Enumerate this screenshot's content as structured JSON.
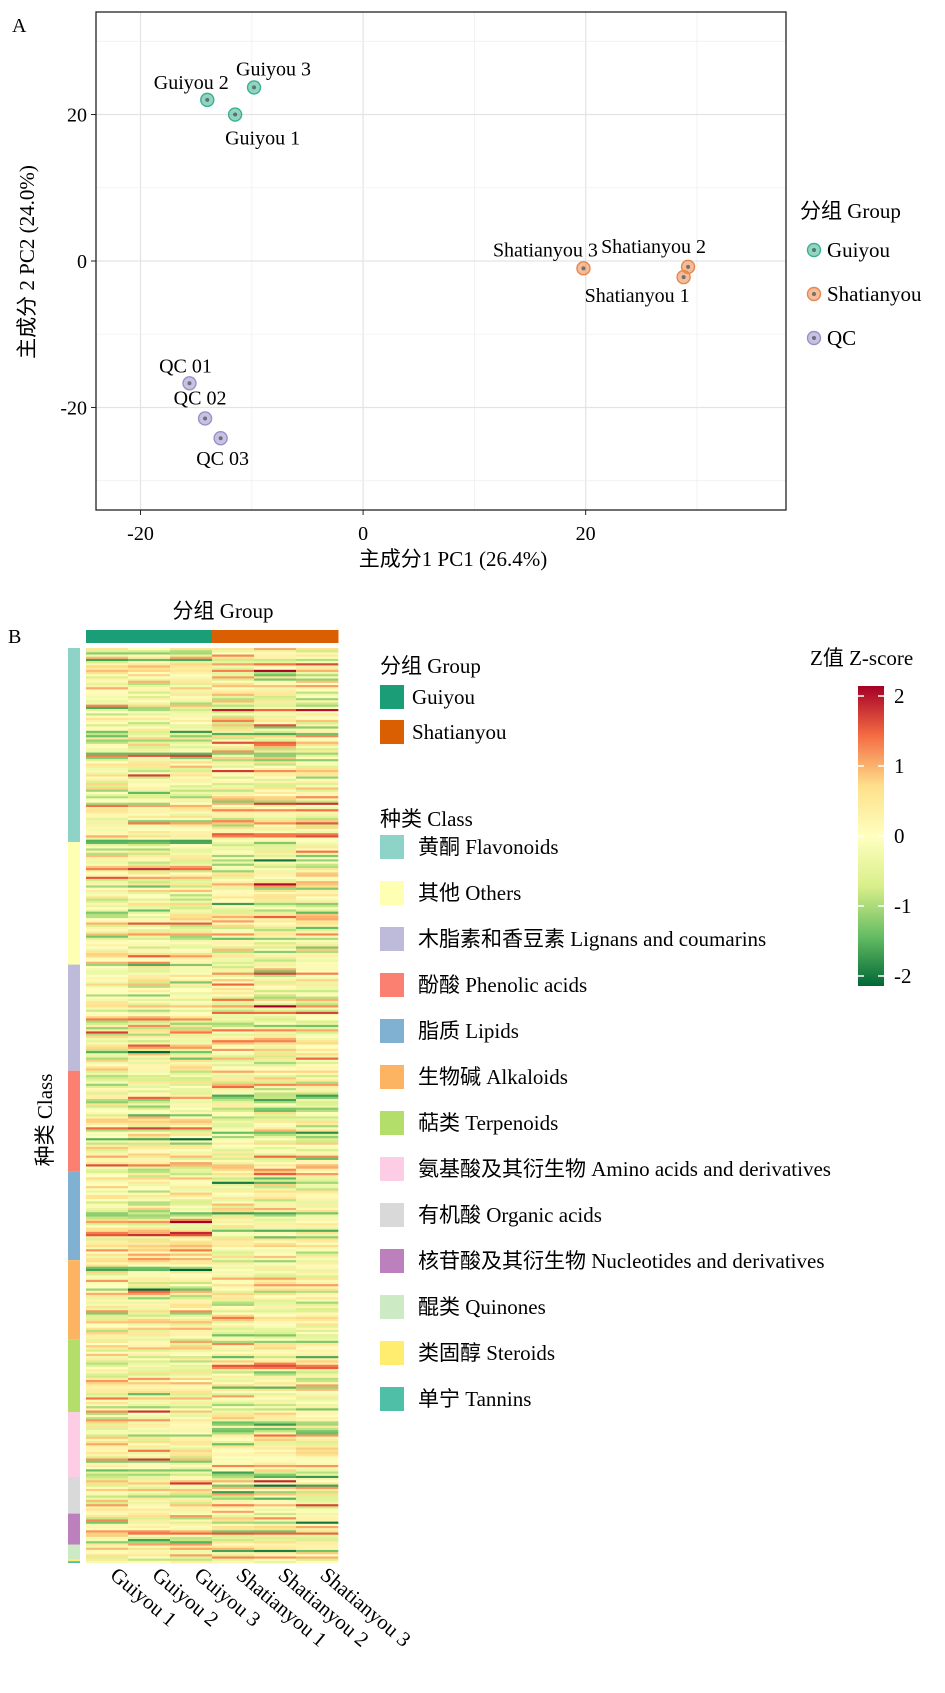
{
  "panel_a_label": "A",
  "panel_b_label": "B",
  "chart_data": [
    {
      "type": "scatter",
      "panel": "A",
      "xlabel": "主成分1 PC1 (26.4%)",
      "ylabel": "主成分 2 PC2 (24.0%)",
      "xlim": [
        -24,
        38
      ],
      "ylim": [
        -34,
        34
      ],
      "xticks": [
        -20,
        0,
        20
      ],
      "yticks": [
        -20,
        0,
        20
      ],
      "grid": true,
      "legend": {
        "title": "分组 Group",
        "position": "right",
        "entries": [
          {
            "name": "Guiyou",
            "color": "#3bb08f"
          },
          {
            "name": "Shatianyou",
            "color": "#e8874a"
          },
          {
            "name": "QC",
            "color": "#9a8fc9"
          }
        ]
      },
      "points": [
        {
          "label": "Guiyou 1",
          "group": "Guiyou",
          "x": -11.5,
          "y": 20.0
        },
        {
          "label": "Guiyou 2",
          "group": "Guiyou",
          "x": -14.0,
          "y": 22.0
        },
        {
          "label": "Guiyou 3",
          "group": "Guiyou",
          "x": -9.8,
          "y": 23.7
        },
        {
          "label": "Shatianyou 1",
          "group": "Shatianyou",
          "x": 28.8,
          "y": -2.2
        },
        {
          "label": "Shatianyou 2",
          "group": "Shatianyou",
          "x": 29.2,
          "y": -0.8
        },
        {
          "label": "Shatianyou 3",
          "group": "Shatianyou",
          "x": 19.8,
          "y": -1.0
        },
        {
          "label": "QC 01",
          "group": "QC",
          "x": -15.6,
          "y": -16.7
        },
        {
          "label": "QC 02",
          "group": "QC",
          "x": -14.2,
          "y": -21.5
        },
        {
          "label": "QC 03",
          "group": "QC",
          "x": -12.8,
          "y": -24.2
        }
      ]
    },
    {
      "type": "heatmap",
      "panel": "B",
      "columns": [
        "Guiyou 1",
        "Guiyou 2",
        "Guiyou 3",
        "Shatianyou 1",
        "Shatianyou 2",
        "Shatianyou 3"
      ],
      "column_groups": [
        "Guiyou",
        "Guiyou",
        "Guiyou",
        "Shatianyou",
        "Shatianyou",
        "Shatianyou"
      ],
      "group_annotation_title": "分组 Group",
      "group_legend_title": "分组 Group",
      "group_legend": [
        {
          "name": "Guiyou",
          "color": "#1b9e77"
        },
        {
          "name": "Shatianyou",
          "color": "#d95f02"
        }
      ],
      "row_annotation_title": "种类 Class",
      "class_legend_title": "种类 Class",
      "classes": [
        {
          "name": "黄酮 Flavonoids",
          "color": "#8dd3c7",
          "share": 0.212
        },
        {
          "name": "其他  Others",
          "color": "#ffffb3",
          "share": 0.134
        },
        {
          "name": "木脂素和香豆素 Lignans and coumarins",
          "color": "#bebada",
          "share": 0.116
        },
        {
          "name": "酚酸 Phenolic acids",
          "color": "#fb8072",
          "share": 0.11
        },
        {
          "name": "脂质 Lipids",
          "color": "#80b1d3",
          "share": 0.097
        },
        {
          "name": "生物碱 Alkaloids",
          "color": "#fdb462",
          "share": 0.087
        },
        {
          "name": "萜类 Terpenoids",
          "color": "#b3de69",
          "share": 0.079
        },
        {
          "name": "氨基酸及其衍生物  Amino acids and derivatives",
          "color": "#fccde5",
          "share": 0.071
        },
        {
          "name": "有机酸 Organic acids",
          "color": "#d9d9d9",
          "share": 0.04
        },
        {
          "name": "核苷酸及其衍生物  Nucleotides and derivatives",
          "color": "#bc80bd",
          "share": 0.034
        },
        {
          "name": "醌类  Quinones",
          "color": "#ccebc5",
          "share": 0.016
        },
        {
          "name": "类固醇  Steroids",
          "color": "#ffed6f",
          "share": 0.002
        },
        {
          "name": "单宁 Tannins",
          "color": "#4fbfa8",
          "share": 0.002
        }
      ],
      "colorbar": {
        "title": "Z值  Z-score",
        "range": [
          -2,
          2
        ],
        "ticks": [
          2,
          1,
          0,
          -1,
          -2
        ],
        "colors": [
          "#006837",
          "#66bd63",
          "#d9ef8b",
          "#ffffbf",
          "#fee08b",
          "#f46d43",
          "#a50026"
        ]
      },
      "rows_per_column": 420
    }
  ]
}
